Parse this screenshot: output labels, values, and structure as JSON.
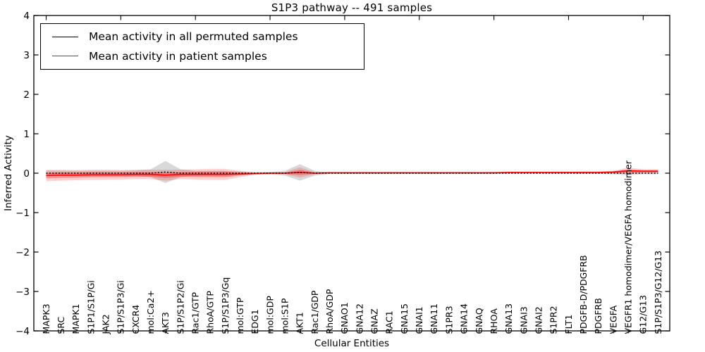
{
  "figure": {
    "title": "S1P3 pathway -- 491 samples",
    "xlabel": "Cellular Entities",
    "ylabel": "Inferred Activity"
  },
  "legend": {
    "position": "upper left",
    "entries": [
      {
        "label": "Mean activity in all permuted samples",
        "color": "#000000"
      },
      {
        "label": "Mean activity in patient samples",
        "color": "#ff0000"
      }
    ]
  },
  "chart_data": {
    "type": "line",
    "title": "S1P3 pathway -- 491 samples",
    "xlabel": "Cellular Entities",
    "ylabel": "Inferred Activity",
    "ylim": [
      -4,
      4
    ],
    "yticks": [
      -4,
      -3,
      -2,
      -1,
      0,
      1,
      2,
      3,
      4
    ],
    "grid": false,
    "categories": [
      "MAPK3",
      "SRC",
      "MAPK1",
      "S1P1/S1P/Gi",
      "JAK2",
      "S1P/S1P3/Gi",
      "CXCR4",
      "mol:Ca2+",
      "AKT3",
      "S1P/S1P2/Gi",
      "Rac1/GTP",
      "RhoA/GTP",
      "S1P/S1P3/Gq",
      "mol:GTP",
      "EDG1",
      "mol:GDP",
      "mol:S1P",
      "AKT1",
      "Rac1/GDP",
      "RhoA/GDP",
      "GNAO1",
      "GNA12",
      "GNAZ",
      "RAC1",
      "GNA15",
      "GNAI1",
      "GNA11",
      "S1PR3",
      "GNA14",
      "GNAQ",
      "RHOA",
      "GNA13",
      "GNAI3",
      "GNAI2",
      "S1PR2",
      "FLT1",
      "PDGFB-D/PDGFRB",
      "PDGFRB",
      "VEGFA",
      "VEGFR1 homodimer/VEGFA homodimer",
      "G12/G13",
      "S1P/S1P3/G12/G13"
    ],
    "series": [
      {
        "name": "Mean activity in all permuted samples",
        "color": "#000000",
        "line_style": "dotted",
        "values": [
          0,
          0,
          0,
          0,
          0,
          0,
          0,
          0,
          0.03,
          0,
          0,
          0,
          0,
          0,
          0,
          0,
          0,
          0.02,
          0,
          0,
          0,
          0,
          0,
          0,
          0,
          0,
          0,
          0,
          0,
          0,
          0,
          0,
          0,
          0,
          0,
          0,
          0,
          0,
          0,
          0,
          0,
          0
        ],
        "band": [
          0.07,
          0.06,
          0.06,
          0.06,
          0.06,
          0.06,
          0.07,
          0.1,
          0.28,
          0.1,
          0.06,
          0.06,
          0.06,
          0.04,
          0.03,
          0.03,
          0.06,
          0.21,
          0.06,
          0.02,
          0.02,
          0.02,
          0.02,
          0.02,
          0.02,
          0.02,
          0.02,
          0.02,
          0.02,
          0.02,
          0.02,
          0.02,
          0.02,
          0.02,
          0.02,
          0.02,
          0.02,
          0.02,
          0.03,
          0.05,
          0.03,
          0.03
        ],
        "band_color": "rgba(130,130,130,0.30)"
      },
      {
        "name": "Mean activity in patient samples",
        "color": "#ff0000",
        "line_style": "solid",
        "values": [
          -0.06,
          -0.05,
          -0.05,
          -0.04,
          -0.04,
          -0.04,
          -0.03,
          -0.03,
          -0.05,
          -0.03,
          -0.03,
          -0.03,
          -0.03,
          -0.02,
          -0.01,
          0,
          0,
          0.02,
          0,
          0.01,
          0.01,
          0.01,
          0.01,
          0.01,
          0.01,
          0.01,
          0.01,
          0.01,
          0.01,
          0.01,
          0.01,
          0.02,
          0.02,
          0.02,
          0.02,
          0.02,
          0.02,
          0.02,
          0.03,
          0.06,
          0.05,
          0.05
        ],
        "band_outer": [
          0.14,
          0.14,
          0.13,
          0.13,
          0.13,
          0.12,
          0.12,
          0.12,
          0.14,
          0.12,
          0.13,
          0.14,
          0.14,
          0.08,
          0.03,
          0.025,
          0.03,
          0.13,
          0.03,
          0.02,
          0.02,
          0.02,
          0.02,
          0.02,
          0.02,
          0.02,
          0.02,
          0.02,
          0.02,
          0.02,
          0.02,
          0.02,
          0.02,
          0.02,
          0.02,
          0.02,
          0.025,
          0.025,
          0.03,
          0.08,
          0.05,
          0.05
        ],
        "band_inner": [
          0.07,
          0.07,
          0.065,
          0.065,
          0.06,
          0.06,
          0.06,
          0.06,
          0.07,
          0.06,
          0.065,
          0.07,
          0.07,
          0.04,
          0.015,
          0.012,
          0.015,
          0.065,
          0.015,
          0.01,
          0.01,
          0.01,
          0.01,
          0.01,
          0.01,
          0.01,
          0.01,
          0.01,
          0.01,
          0.01,
          0.01,
          0.01,
          0.01,
          0.01,
          0.01,
          0.01,
          0.012,
          0.012,
          0.015,
          0.04,
          0.025,
          0.025
        ],
        "band_outer_color": "rgba(255,0,0,0.18)",
        "band_inner_color": "rgba(255,0,0,0.30)"
      }
    ]
  }
}
